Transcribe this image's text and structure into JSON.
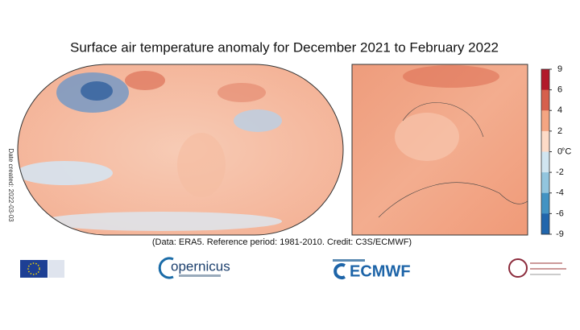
{
  "title": "Surface air temperature anomaly for December 2021 to February 2022",
  "side_note": "Date created: 2022-03-03",
  "caption": "(Data: ERA5.  Reference period: 1981-2010.  Credit: C3S/ECMWF)",
  "colorbar": {
    "ticks": [
      9,
      6,
      4,
      2,
      0,
      -2,
      -4,
      -6,
      -9
    ],
    "unit": "°C",
    "colors": [
      "#b2182b",
      "#d6604d",
      "#f4a582",
      "#fddbc7",
      "#d1e5f0",
      "#92c5de",
      "#4393c3",
      "#2166ac"
    ]
  },
  "logos": {
    "copernicus": "opernicus",
    "ecmwf": "ECMWF"
  }
}
